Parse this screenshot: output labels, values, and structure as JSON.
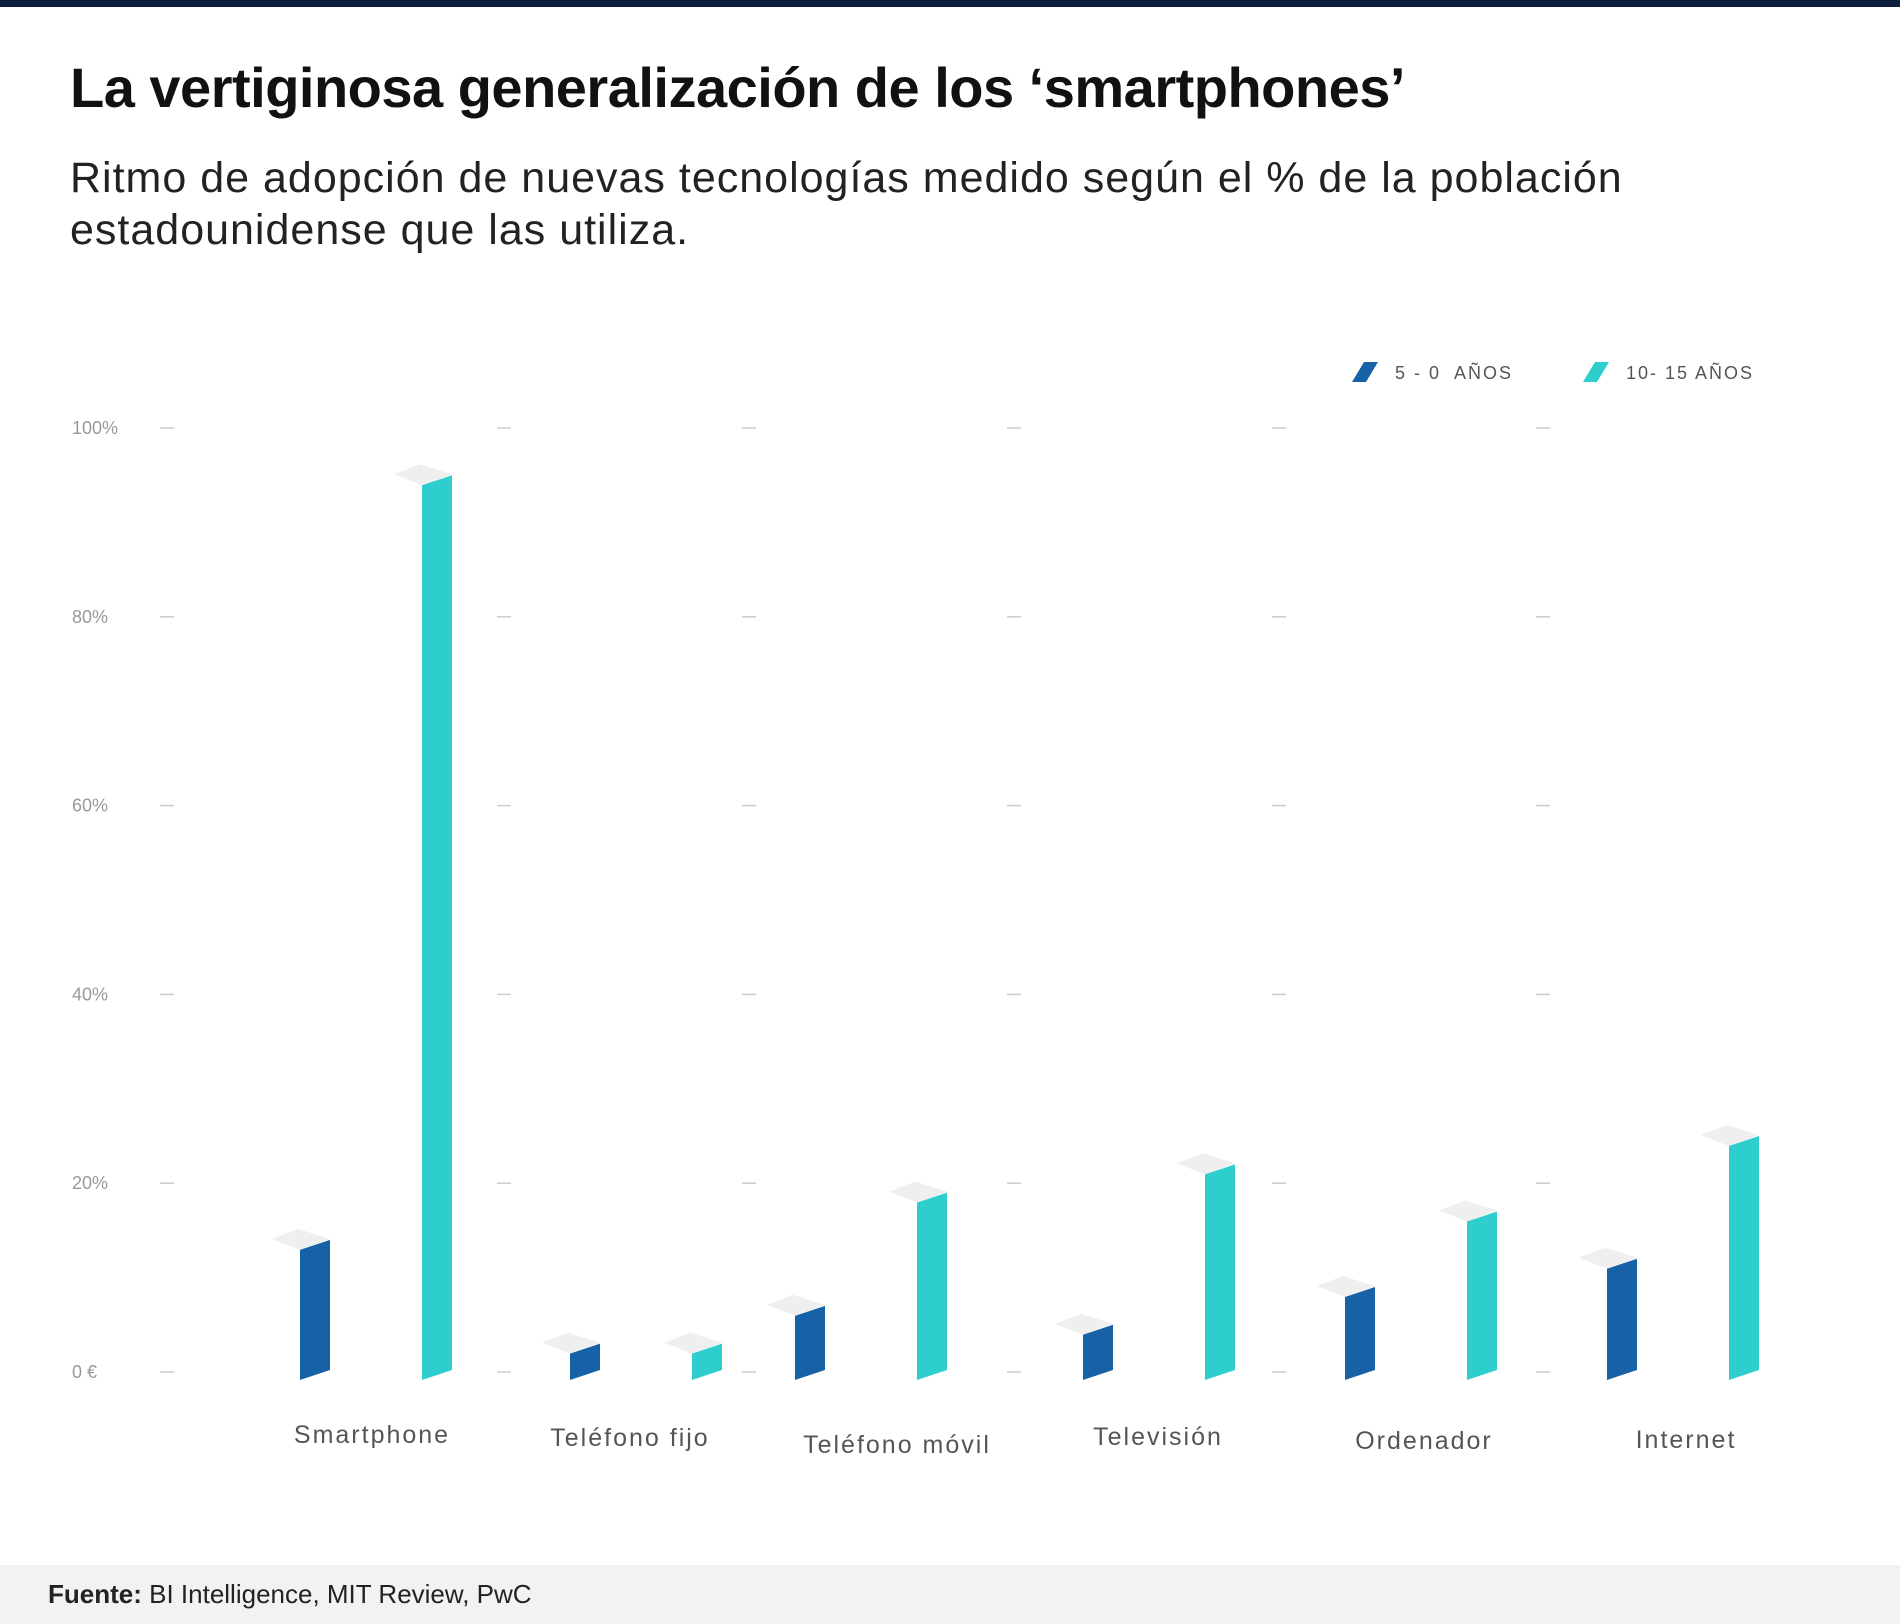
{
  "title": "La vertiginosa generalización de los ‘smartphones’",
  "subtitle": "Ritmo de adopción de nuevas tecnologías medido según el % de la población estadounidense que las utiliza.",
  "footer": {
    "label": "Fuente:",
    "text": "BI Intelligence, MIT Review, PwC"
  },
  "colors": {
    "series_1": "#1762a6",
    "series_2": "#2ecece",
    "cap": "#efefef",
    "tick": "#999999",
    "gridmark": "#cccccc",
    "category_label": "#555555"
  },
  "chart_data": {
    "type": "bar",
    "title": "",
    "xlabel": "",
    "ylabel": "",
    "ylim": [
      0,
      100
    ],
    "y_ticks": [
      "0 €",
      "20%",
      "40%",
      "60%",
      "80%",
      "100%"
    ],
    "grid": false,
    "legend_position": "top-right",
    "categories": [
      "Smartphone",
      "Teléfono fijo",
      "Teléfono móvil",
      "Televisión",
      "Ordenador",
      "Internet"
    ],
    "series": [
      {
        "name": "5 - 0  AÑOS",
        "values": [
          14,
          3,
          7,
          5,
          9,
          12
        ]
      },
      {
        "name": "10- 15 AÑOS",
        "values": [
          95,
          3,
          19,
          22,
          17,
          25
        ]
      }
    ]
  }
}
